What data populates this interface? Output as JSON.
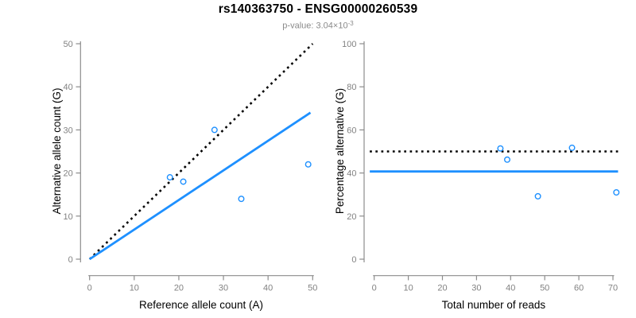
{
  "header": {
    "title": "rs140363750 - ENSG00000260539",
    "pvalue_main": "p-value: 3.04×10",
    "pvalue_exponent": "-3"
  },
  "colors": {
    "accent_blue": "#1E90FF",
    "identity_black": "#000000",
    "axis_gray": "#8c8c8c",
    "tick_label_gray": "#828282",
    "axis_title_black": "#000000",
    "subtitle_gray": "#8a8a8a"
  },
  "chart_data": [
    {
      "id": "allele-count-scatter",
      "type": "scatter",
      "xlabel": "Reference allele count (A)",
      "ylabel": "Alternative allele count (G)",
      "xlim": [
        0,
        50
      ],
      "ylim": [
        0,
        50
      ],
      "xticks": [
        0,
        10,
        20,
        30,
        40,
        50
      ],
      "yticks": [
        0,
        10,
        20,
        30,
        40,
        50
      ],
      "grid": false,
      "legend": "none",
      "points": [
        [
          18,
          19
        ],
        [
          21,
          18
        ],
        [
          28,
          30
        ],
        [
          34,
          14
        ],
        [
          49,
          22
        ]
      ],
      "lines": [
        {
          "name": "identity-line",
          "style": "dotted",
          "color": "#000000",
          "from": [
            0,
            0
          ],
          "to": [
            50,
            50
          ]
        },
        {
          "name": "fit-line",
          "style": "solid",
          "color": "#1E90FF",
          "from": [
            0,
            0
          ],
          "to": [
            49.5,
            34
          ]
        }
      ]
    },
    {
      "id": "percentage-scatter",
      "type": "scatter",
      "xlabel": "Total number of reads",
      "ylabel": "Percentage alternative (G)",
      "xlim": [
        0,
        70
      ],
      "ylim": [
        0,
        100
      ],
      "xticks": [
        0,
        10,
        20,
        30,
        40,
        50,
        60,
        70
      ],
      "yticks": [
        0,
        20,
        40,
        60,
        80,
        100
      ],
      "grid": false,
      "legend": "none",
      "points": [
        [
          37,
          51.4
        ],
        [
          39,
          46.2
        ],
        [
          48,
          29.2
        ],
        [
          58,
          51.7
        ],
        [
          71,
          31
        ]
      ],
      "lines": [
        {
          "name": "expected-percentage-line",
          "style": "dotted",
          "color": "#000000",
          "from": [
            -1.3,
            50
          ],
          "to": [
            71.5,
            50
          ]
        },
        {
          "name": "fitted-percentage-line",
          "style": "solid",
          "color": "#1E90FF",
          "from": [
            -1.3,
            40.7
          ],
          "to": [
            71.5,
            40.7
          ]
        }
      ]
    }
  ]
}
